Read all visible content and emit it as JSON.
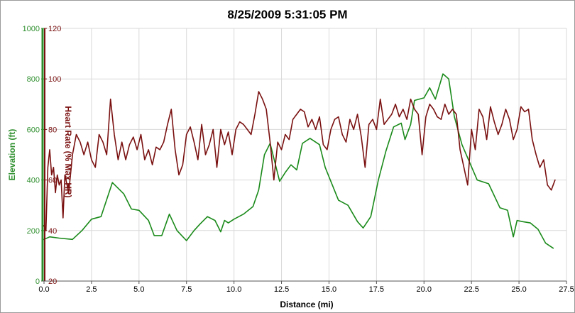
{
  "chart_data": {
    "type": "line",
    "title": "8/25/2009 5:31:05 PM",
    "xlabel": "Distance (mi)",
    "xlim": [
      0,
      27.5
    ],
    "x_ticks": [
      "0.0",
      "2.5",
      "5.0",
      "7.5",
      "10.0",
      "12.5",
      "15.0",
      "17.5",
      "20.0",
      "22.5",
      "25.0",
      "27.5"
    ],
    "grid": true,
    "axes": {
      "elevation": {
        "label": "Elevation (ft)",
        "ylim": [
          0,
          1000
        ],
        "ticks": [
          "0",
          "200",
          "400",
          "600",
          "800",
          "1000"
        ],
        "color": "#2f8f2f"
      },
      "heart_rate": {
        "label": "Heart Rate (% Max HR)",
        "ylim": [
          20,
          120
        ],
        "ticks": [
          "20",
          "40",
          "60",
          "80",
          "100",
          "120"
        ],
        "color": "#7a1010"
      }
    },
    "series": [
      {
        "axis": "elevation",
        "color": "#1a8a1a",
        "x": [
          0,
          0.3,
          0.8,
          1.5,
          2.0,
          2.5,
          3.0,
          3.6,
          4.2,
          4.6,
          5.0,
          5.5,
          5.8,
          6.2,
          6.6,
          7.0,
          7.5,
          7.9,
          8.2,
          8.6,
          9.0,
          9.3,
          9.5,
          9.7,
          10.0,
          10.5,
          11.0,
          11.3,
          11.6,
          11.9,
          12.4,
          12.7,
          13.0,
          13.3,
          13.6,
          14.0,
          14.5,
          14.8,
          15.5,
          16.0,
          16.5,
          16.8,
          17.2,
          17.6,
          18.0,
          18.4,
          18.8,
          19.0,
          19.3,
          19.5,
          20.0,
          20.3,
          20.6,
          21.0,
          21.3,
          21.6,
          22.0,
          22.4,
          22.8,
          23.4,
          24.0,
          24.4,
          24.7,
          24.9,
          25.2,
          25.6,
          26.0,
          26.4,
          26.8
        ],
        "values": [
          165,
          175,
          170,
          165,
          200,
          245,
          255,
          390,
          345,
          285,
          280,
          240,
          180,
          180,
          265,
          200,
          160,
          200,
          225,
          255,
          240,
          195,
          240,
          230,
          245,
          265,
          295,
          360,
          500,
          545,
          395,
          430,
          460,
          440,
          545,
          565,
          540,
          450,
          320,
          300,
          235,
          210,
          255,
          400,
          515,
          610,
          625,
          560,
          620,
          715,
          725,
          765,
          720,
          820,
          800,
          650,
          540,
          470,
          400,
          385,
          290,
          280,
          175,
          240,
          235,
          230,
          205,
          150,
          130
        ]
      },
      {
        "axis": "heart_rate",
        "color": "#7a1010",
        "x": [
          0,
          0.1,
          0.2,
          0.3,
          0.4,
          0.5,
          0.6,
          0.7,
          0.8,
          0.9,
          1.0,
          1.1,
          1.3,
          1.5,
          1.7,
          1.9,
          2.1,
          2.3,
          2.5,
          2.7,
          2.9,
          3.1,
          3.3,
          3.5,
          3.7,
          3.9,
          4.1,
          4.3,
          4.5,
          4.7,
          4.9,
          5.1,
          5.3,
          5.5,
          5.7,
          5.9,
          6.1,
          6.3,
          6.5,
          6.7,
          6.9,
          7.1,
          7.3,
          7.5,
          7.7,
          7.9,
          8.1,
          8.3,
          8.5,
          8.7,
          8.9,
          9.1,
          9.3,
          9.5,
          9.7,
          9.9,
          10.1,
          10.3,
          10.5,
          10.7,
          10.9,
          11.1,
          11.3,
          11.5,
          11.7,
          11.9,
          12.1,
          12.3,
          12.5,
          12.7,
          12.9,
          13.1,
          13.3,
          13.5,
          13.7,
          13.9,
          14.1,
          14.3,
          14.5,
          14.7,
          14.9,
          15.1,
          15.3,
          15.5,
          15.7,
          15.9,
          16.1,
          16.3,
          16.5,
          16.7,
          16.9,
          17.1,
          17.3,
          17.5,
          17.7,
          17.9,
          18.1,
          18.3,
          18.5,
          18.7,
          18.9,
          19.1,
          19.3,
          19.5,
          19.7,
          19.9,
          20.1,
          20.3,
          20.5,
          20.7,
          20.9,
          21.1,
          21.3,
          21.5,
          21.7,
          21.9,
          22.1,
          22.3,
          22.5,
          22.7,
          22.9,
          23.1,
          23.3,
          23.5,
          23.7,
          23.9,
          24.1,
          24.3,
          24.5,
          24.7,
          24.9,
          25.1,
          25.3,
          25.5,
          25.7,
          25.9,
          26.1,
          26.3,
          26.5,
          26.7,
          26.9
        ],
        "values": [
          42,
          40,
          65,
          72,
          62,
          65,
          55,
          62,
          58,
          60,
          45,
          62,
          55,
          70,
          78,
          75,
          70,
          75,
          68,
          65,
          78,
          75,
          70,
          92,
          78,
          68,
          75,
          68,
          74,
          77,
          72,
          78,
          68,
          72,
          66,
          73,
          72,
          75,
          82,
          88,
          72,
          62,
          66,
          78,
          81,
          75,
          68,
          82,
          70,
          74,
          80,
          65,
          80,
          74,
          79,
          70,
          80,
          83,
          82,
          80,
          78,
          86,
          95,
          92,
          88,
          75,
          60,
          75,
          72,
          78,
          76,
          84,
          86,
          88,
          87,
          81,
          84,
          80,
          85,
          74,
          72,
          80,
          84,
          85,
          78,
          75,
          84,
          80,
          86,
          77,
          65,
          82,
          84,
          80,
          92,
          82,
          84,
          86,
          90,
          85,
          88,
          84,
          92,
          88,
          86,
          70,
          85,
          90,
          88,
          85,
          84,
          90,
          86,
          88,
          86,
          72,
          65,
          58,
          80,
          72,
          88,
          85,
          76,
          89,
          83,
          78,
          82,
          88,
          84,
          76,
          80,
          89,
          87,
          88,
          76,
          70,
          65,
          68,
          58,
          56,
          60
        ]
      }
    ]
  }
}
